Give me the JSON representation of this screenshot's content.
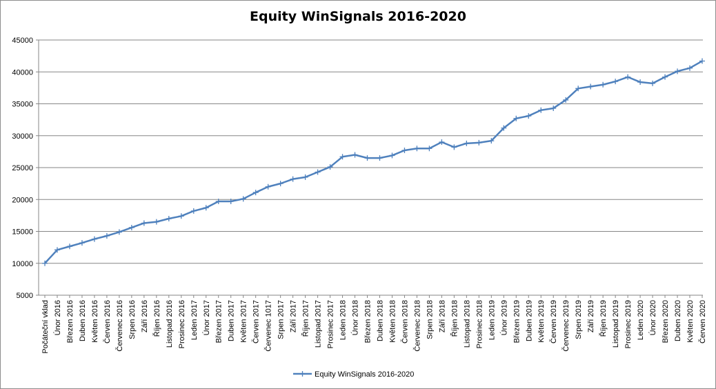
{
  "chart_data": {
    "type": "line",
    "title": "Equity WinSignals 2016-2020",
    "xlabel": "",
    "ylabel": "",
    "ylim": [
      5000,
      45000
    ],
    "yticks": [
      5000,
      10000,
      15000,
      20000,
      25000,
      30000,
      35000,
      40000,
      45000
    ],
    "grid": true,
    "legend_position": "bottom",
    "line_color": "#4F81BD",
    "categories": [
      "Počáteční vklad",
      "Únor 2016",
      "Březen 2016",
      "Duben 2016",
      "Květen 2016",
      "Červen 2016",
      "Červenec 2016",
      "Srpen 2016",
      "Září 2016",
      "Říjen 2016",
      "Listopad 2016",
      "Prosinec 2016",
      "Leden 2017",
      "Únor 2017",
      "Březen 2017",
      "Duben 2017",
      "Květen 2017",
      "Červen 2017",
      "Červenec 1017",
      "Srpen 2017",
      "Září 2017",
      "Říjen 2017",
      "Listopad 2017",
      "Prosinec 2017",
      "Leden 2018",
      "Únor 2018",
      "Březen 2018",
      "Duben 2018",
      "Květen 2018",
      "Červen 2018",
      "Červenec 2018",
      "Srpen 2018",
      "Září 2018",
      "Říjen 2018",
      "Listopad 2018",
      "Prosinec 2018",
      "Leden 2019",
      "Únor 2019",
      "Březen 2019",
      "Duben 2019",
      "Květen 2019",
      "Červen 2019",
      "Červenec 2019",
      "Srpen 2019",
      "Září 2019",
      "Říjen 2019",
      "Listopad 2019",
      "Prosinec 2019",
      "Leden 2020",
      "Únor 2020",
      "Březen 2020",
      "Duben 2020",
      "Květen 2020",
      "Červen 2020"
    ],
    "series": [
      {
        "name": "Equity WinSignals 2016-2020",
        "values": [
          10000,
          12100,
          12650,
          13200,
          13800,
          14300,
          14900,
          15600,
          16300,
          16500,
          17000,
          17400,
          18200,
          18700,
          19700,
          19700,
          20100,
          21100,
          22000,
          22500,
          23200,
          23500,
          24300,
          25100,
          26700,
          27000,
          26500,
          26500,
          26900,
          27700,
          28000,
          28000,
          29000,
          28200,
          28800,
          28900,
          29200,
          31200,
          32700,
          33100,
          34000,
          34300,
          35600,
          37400,
          37700,
          38000,
          38500,
          39200,
          38400,
          38200,
          39200,
          40100,
          40600,
          41700
        ]
      }
    ]
  }
}
